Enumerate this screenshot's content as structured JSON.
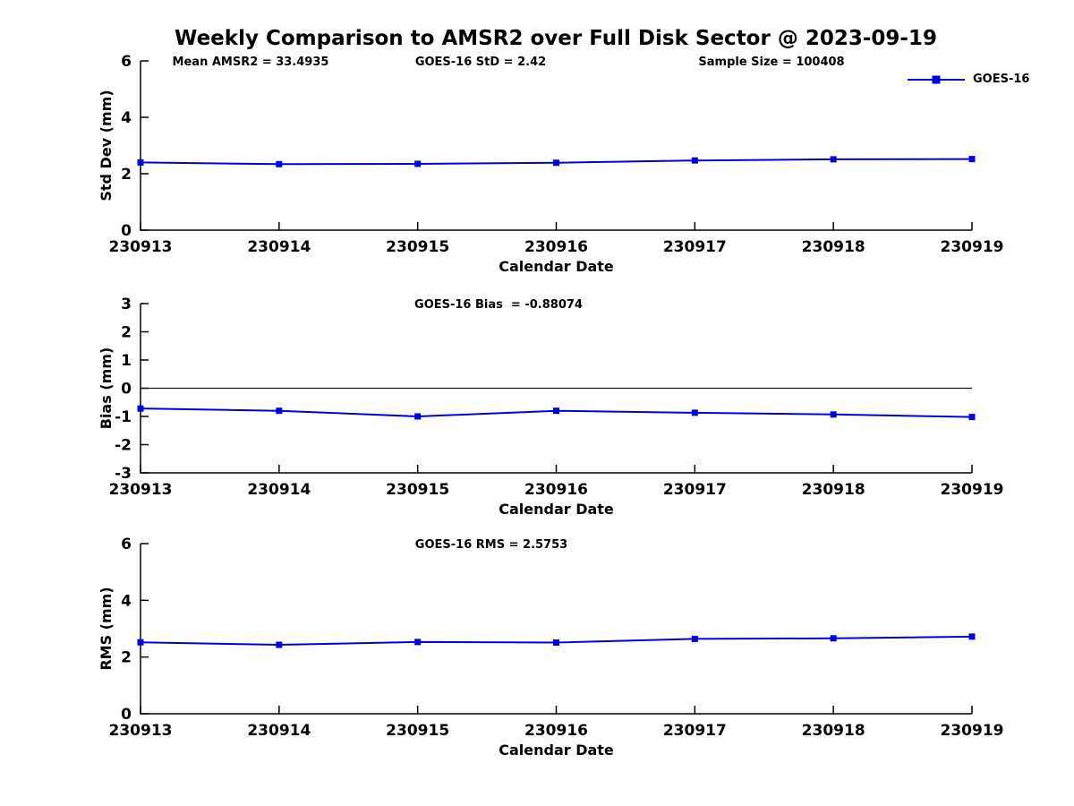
{
  "figure": {
    "title": "Weekly Comparison to AMSR2 over Full Disk Sector @ 2023-09-19"
  },
  "legend": {
    "label": "GOES-16",
    "position": "top-right"
  },
  "colors": {
    "line": "#0000dd",
    "axis": "#000000",
    "zero_line": "#1a1a1a",
    "text": "#000000",
    "background": "#ffffff"
  },
  "chart_data": [
    {
      "type": "line",
      "name": "std-dev-plot",
      "categories": [
        "230913",
        "230914",
        "230915",
        "230916",
        "230917",
        "230918",
        "230919"
      ],
      "series": [
        {
          "name": "GOES-16",
          "values": [
            2.4,
            2.34,
            2.35,
            2.39,
            2.47,
            2.51,
            2.52
          ]
        }
      ],
      "xlabel": "Calendar Date",
      "ylabel": "Std Dev (mm)",
      "ylim": [
        0,
        6
      ],
      "yticks": [
        0,
        2,
        4,
        6
      ],
      "grid": false,
      "zero_line": false,
      "marker": "square",
      "annotations": [
        {
          "text": "Mean AMSR2 = 33.4935",
          "x": 280
        },
        {
          "text": "GOES-16 StD = 2.42",
          "x": 537
        },
        {
          "text": "Sample Size = 100408",
          "x": 862
        }
      ]
    },
    {
      "type": "line",
      "name": "bias-plot",
      "categories": [
        "230913",
        "230914",
        "230915",
        "230916",
        "230917",
        "230918",
        "230919"
      ],
      "series": [
        {
          "name": "GOES-16",
          "values": [
            -0.72,
            -0.8,
            -1.0,
            -0.8,
            -0.87,
            -0.93,
            -1.02
          ]
        }
      ],
      "xlabel": "Calendar Date",
      "ylabel": "Bias (mm)",
      "ylim": [
        -3,
        3
      ],
      "yticks": [
        -3,
        -2,
        -1,
        0,
        1,
        2,
        3
      ],
      "grid": false,
      "zero_line": true,
      "marker": "square",
      "annotations": [
        {
          "text": "GOES-16 Bias  = -0.88074",
          "x": 557
        }
      ]
    },
    {
      "type": "line",
      "name": "rms-plot",
      "categories": [
        "230913",
        "230914",
        "230915",
        "230916",
        "230917",
        "230918",
        "230919"
      ],
      "series": [
        {
          "name": "GOES-16",
          "values": [
            2.52,
            2.43,
            2.53,
            2.51,
            2.64,
            2.66,
            2.72
          ]
        }
      ],
      "xlabel": "Calendar Date",
      "ylabel": "RMS (mm)",
      "ylim": [
        0,
        6
      ],
      "yticks": [
        0,
        2,
        4,
        6
      ],
      "grid": false,
      "zero_line": false,
      "marker": "square",
      "annotations": [
        {
          "text": "GOES-16 RMS = 2.5753",
          "x": 549
        }
      ]
    }
  ]
}
